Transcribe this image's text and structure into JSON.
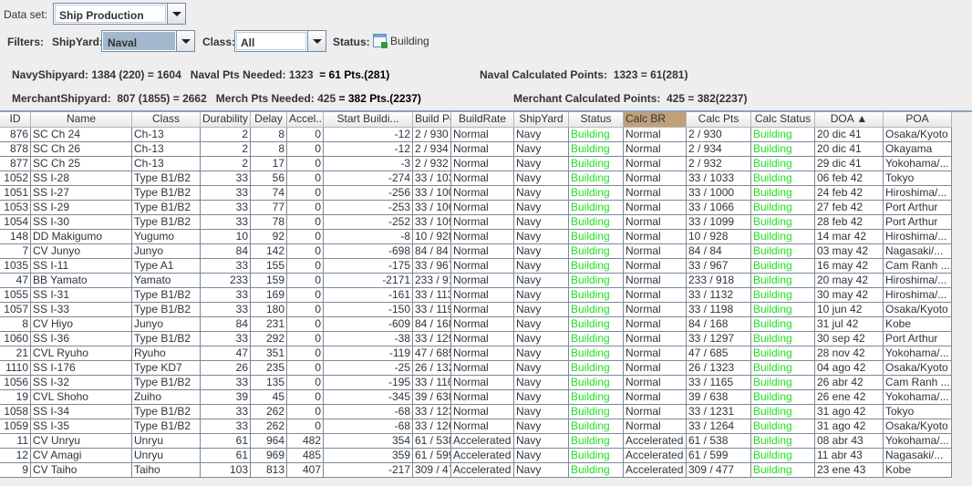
{
  "toolbar": {
    "dataset_label": "Data set:",
    "dataset_value": "Ship Production",
    "filters_label": "Filters:",
    "shipyard_label": "ShipYard:",
    "shipyard_value": "Naval",
    "class_label": "Class:",
    "class_value": "All",
    "status_label": "Status:",
    "status_value": "Building",
    "status_icon": "calendar-icon"
  },
  "summary": {
    "navy": "NavyShipyard: 1384 (220) = 1604   Naval Pts Needed: 1323  ",
    "navy_result": "= 61 Pts.(281)",
    "naval_calc": "Naval Calculated Points:  1323 = 61(281)",
    "merchant": "MerchantShipyard:  807 (1855) = 2662   Merch Pts Needed: 425 ",
    "merchant_result": "= 382 Pts.(2237)",
    "merchant_calc": "Merchant Calculated Points:  425 = 382(2237)"
  },
  "colors": {
    "building": "#22dd22",
    "sorted_header": "#bfa07a"
  },
  "table": {
    "columns": [
      "ID",
      "Name",
      "Class",
      "Durability",
      "Delay",
      "Accel...",
      "Start Buildi...",
      "Build Point...",
      "BuildRate",
      "ShipYard",
      "Status",
      "Calc BR",
      "Calc Pts",
      "Calc Status",
      "DOA ▲",
      "POA"
    ],
    "rows": [
      [
        "876",
        "SC Ch 24",
        "Ch-13",
        "2",
        "8",
        "0",
        "-12",
        "2 / 930",
        "Normal",
        "Navy",
        "Building",
        "Normal",
        "2 / 930",
        "Building",
        "20 dic 41",
        "Osaka/Kyoto"
      ],
      [
        "878",
        "SC Ch 26",
        "Ch-13",
        "2",
        "8",
        "0",
        "-12",
        "2 / 934",
        "Normal",
        "Navy",
        "Building",
        "Normal",
        "2 / 934",
        "Building",
        "20 dic 41",
        "Okayama"
      ],
      [
        "877",
        "SC Ch 25",
        "Ch-13",
        "2",
        "17",
        "0",
        "-3",
        "2 / 932",
        "Normal",
        "Navy",
        "Building",
        "Normal",
        "2 / 932",
        "Building",
        "29 dic 41",
        "Yokohama/..."
      ],
      [
        "1052",
        "SS I-28",
        "Type B1/B2",
        "33",
        "56",
        "0",
        "-274",
        "33 / 1033",
        "Normal",
        "Navy",
        "Building",
        "Normal",
        "33 / 1033",
        "Building",
        "06 feb 42",
        "Tokyo"
      ],
      [
        "1051",
        "SS I-27",
        "Type B1/B2",
        "33",
        "74",
        "0",
        "-256",
        "33 / 1000",
        "Normal",
        "Navy",
        "Building",
        "Normal",
        "33 / 1000",
        "Building",
        "24 feb 42",
        "Hiroshima/..."
      ],
      [
        "1053",
        "SS I-29",
        "Type B1/B2",
        "33",
        "77",
        "0",
        "-253",
        "33 / 1066",
        "Normal",
        "Navy",
        "Building",
        "Normal",
        "33 / 1066",
        "Building",
        "27 feb 42",
        "Port Arthur"
      ],
      [
        "1054",
        "SS I-30",
        "Type B1/B2",
        "33",
        "78",
        "0",
        "-252",
        "33 / 1099",
        "Normal",
        "Navy",
        "Building",
        "Normal",
        "33 / 1099",
        "Building",
        "28 feb 42",
        "Port Arthur"
      ],
      [
        "148",
        "DD Makigumo",
        "Yugumo",
        "10",
        "92",
        "0",
        "-8",
        "10 / 928",
        "Normal",
        "Navy",
        "Building",
        "Normal",
        "10 / 928",
        "Building",
        "14 mar 42",
        "Hiroshima/..."
      ],
      [
        "7",
        "CV Junyo",
        "Junyo",
        "84",
        "142",
        "0",
        "-698",
        "84 / 84",
        "Normal",
        "Navy",
        "Building",
        "Normal",
        "84 / 84",
        "Building",
        "03 may 42",
        "Nagasaki/..."
      ],
      [
        "1035",
        "SS I-11",
        "Type A1",
        "33",
        "155",
        "0",
        "-175",
        "33 / 967",
        "Normal",
        "Navy",
        "Building",
        "Normal",
        "33 / 967",
        "Building",
        "16 may 42",
        "Cam Ranh ..."
      ],
      [
        "47",
        "BB Yamato",
        "Yamato",
        "233",
        "159",
        "0",
        "-2171",
        "233 / 918",
        "Normal",
        "Navy",
        "Building",
        "Normal",
        "233 / 918",
        "Building",
        "20 may 42",
        "Hiroshima/..."
      ],
      [
        "1055",
        "SS I-31",
        "Type B1/B2",
        "33",
        "169",
        "0",
        "-161",
        "33 / 1132",
        "Normal",
        "Navy",
        "Building",
        "Normal",
        "33 / 1132",
        "Building",
        "30 may 42",
        "Hiroshima/..."
      ],
      [
        "1057",
        "SS I-33",
        "Type B1/B2",
        "33",
        "180",
        "0",
        "-150",
        "33 / 1198",
        "Normal",
        "Navy",
        "Building",
        "Normal",
        "33 / 1198",
        "Building",
        "10 jun 42",
        "Osaka/Kyoto"
      ],
      [
        "8",
        "CV Hiyo",
        "Junyo",
        "84",
        "231",
        "0",
        "-609",
        "84 / 168",
        "Normal",
        "Navy",
        "Building",
        "Normal",
        "84 / 168",
        "Building",
        "31 jul 42",
        "Kobe"
      ],
      [
        "1060",
        "SS I-36",
        "Type B1/B2",
        "33",
        "292",
        "0",
        "-38",
        "33 / 1297",
        "Normal",
        "Navy",
        "Building",
        "Normal",
        "33 / 1297",
        "Building",
        "30 sep 42",
        "Port Arthur"
      ],
      [
        "21",
        "CVL Ryuho",
        "Ryuho",
        "47",
        "351",
        "0",
        "-119",
        "47 / 685",
        "Normal",
        "Navy",
        "Building",
        "Normal",
        "47 / 685",
        "Building",
        "28 nov 42",
        "Yokohama/..."
      ],
      [
        "1110",
        "SS I-176",
        "Type KD7",
        "26",
        "235",
        "0",
        "-25",
        "26 / 1323",
        "Normal",
        "Navy",
        "Building",
        "Normal",
        "26 / 1323",
        "Building",
        "04 ago 42",
        "Osaka/Kyoto"
      ],
      [
        "1056",
        "SS I-32",
        "Type B1/B2",
        "33",
        "135",
        "0",
        "-195",
        "33 / 1165",
        "Normal",
        "Navy",
        "Building",
        "Normal",
        "33 / 1165",
        "Building",
        "26 abr 42",
        "Cam Ranh ..."
      ],
      [
        "19",
        "CVL Shoho",
        "Zuiho",
        "39",
        "45",
        "0",
        "-345",
        "39 / 638",
        "Normal",
        "Navy",
        "Building",
        "Normal",
        "39 / 638",
        "Building",
        "26 ene 42",
        "Yokohama/..."
      ],
      [
        "1058",
        "SS I-34",
        "Type B1/B2",
        "33",
        "262",
        "0",
        "-68",
        "33 / 1231",
        "Normal",
        "Navy",
        "Building",
        "Normal",
        "33 / 1231",
        "Building",
        "31 ago 42",
        "Tokyo"
      ],
      [
        "1059",
        "SS I-35",
        "Type B1/B2",
        "33",
        "262",
        "0",
        "-68",
        "33 / 1264",
        "Normal",
        "Navy",
        "Building",
        "Normal",
        "33 / 1264",
        "Building",
        "31 ago 42",
        "Osaka/Kyoto"
      ],
      [
        "11",
        "CV Unryu",
        "Unryu",
        "61",
        "964",
        "482",
        "354",
        "61 / 538",
        "Accelerated",
        "Navy",
        "Building",
        "Accelerated",
        "61 / 538",
        "Building",
        "08 abr 43",
        "Yokohama/..."
      ],
      [
        "12",
        "CV Amagi",
        "Unryu",
        "61",
        "969",
        "485",
        "359",
        "61 / 599",
        "Accelerated",
        "Navy",
        "Building",
        "Accelerated",
        "61 / 599",
        "Building",
        "11 abr 43",
        "Nagasaki/..."
      ],
      [
        "9",
        "CV Taiho",
        "Taiho",
        "103",
        "813",
        "407",
        "-217",
        "309 / 477",
        "Accelerated",
        "Navy",
        "Building",
        "Accelerated",
        "309 / 477",
        "Building",
        "23 ene 43",
        "Kobe"
      ]
    ]
  }
}
